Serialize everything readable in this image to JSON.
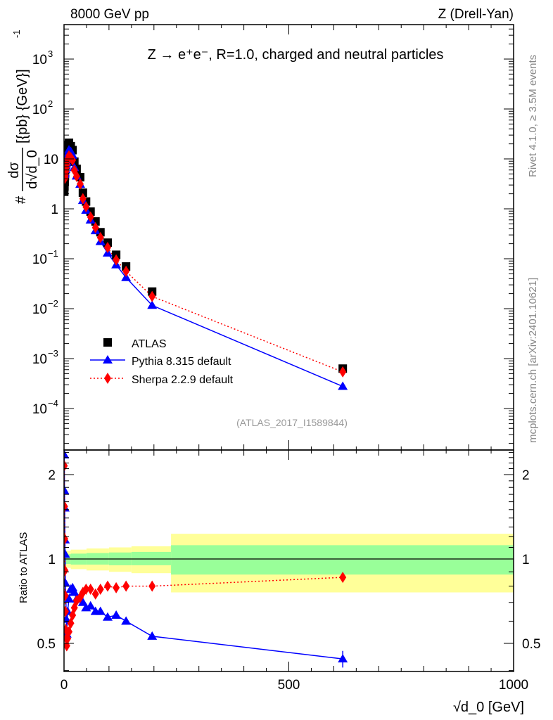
{
  "header": {
    "left": "8000 GeV pp",
    "right": "Z (Drell-Yan)"
  },
  "side_labels": {
    "rivet": "Rivet 4.1.0, ≥ 3.5M events",
    "mcplots": "mcplots.cern.ch [arXiv:2401.10621]"
  },
  "chart_data": [
    {
      "type": "line",
      "panel": "main",
      "title": "Z → e⁺e⁻, R=1.0, charged and neutral particles",
      "annotation": "(ATLAS_2017_I1589844)",
      "ylabel": {
        "prefix": "#",
        "num": "dσ",
        "den": "d√d_0",
        "units": "[{pb} {GeV}]",
        "exp": "-1"
      },
      "yscale": "log",
      "ylim": [
        1.5e-05,
        5000
      ],
      "xlim": [
        0,
        1000
      ],
      "ytick_labels": [
        {
          "v": 1000,
          "base": "10",
          "exp": "3"
        },
        {
          "v": 100,
          "base": "10",
          "exp": "2"
        },
        {
          "v": 10,
          "base": "10",
          "exp": ""
        },
        {
          "v": 1,
          "base": "1",
          "exp": ""
        },
        {
          "v": 0.1,
          "base": "10",
          "exp": "−1"
        },
        {
          "v": 0.01,
          "base": "10",
          "exp": "−2"
        },
        {
          "v": 0.001,
          "base": "10",
          "exp": "−3"
        },
        {
          "v": 0.0001,
          "base": "10",
          "exp": "−4"
        }
      ],
      "legend": {
        "placement": "bottom-left",
        "entries": [
          "ATLAS",
          "Pythia 8.315 default",
          "Sherpa 2.2.9 default"
        ]
      },
      "x": [
        0.5,
        1,
        1.5,
        2,
        2.5,
        3,
        4,
        5,
        6,
        8,
        11,
        15,
        19,
        23,
        28,
        36,
        42,
        49,
        59,
        70,
        81,
        97,
        116,
        138,
        196,
        620
      ],
      "series": [
        {
          "name": "ATLAS",
          "color": "#000000",
          "marker": "square",
          "values": [
            2.2,
            2.8,
            3.5,
            4.5,
            6,
            7.5,
            10,
            13,
            16,
            19,
            21,
            18,
            15,
            8.8,
            6.3,
            4.3,
            2.1,
            1.4,
            0.88,
            0.56,
            0.34,
            0.21,
            0.12,
            0.07,
            0.022,
            0.00063
          ]
        },
        {
          "name": "Pythia 8.315 default",
          "color": "#0000ff",
          "marker": "triangle",
          "derived_from_ratio": true
        },
        {
          "name": "Sherpa 2.2.9 default",
          "color": "#ff0000",
          "marker": "diamond",
          "derived_from_ratio": true
        }
      ]
    },
    {
      "type": "line",
      "panel": "ratio",
      "ylabel": "Ratio to ATLAS",
      "xlabel": "√d_0 [GeV]",
      "yscale": "log",
      "ylim": [
        0.4,
        2.45
      ],
      "xlim": [
        0,
        1000
      ],
      "xtick_labels": [
        "0",
        "500",
        "1000"
      ],
      "xtick_values": [
        0,
        500,
        1000
      ],
      "ytick_labels": [
        "2",
        "1",
        "0.5"
      ],
      "ytick_values": [
        2,
        1,
        0.5
      ],
      "x": [
        0.5,
        1,
        1.5,
        2,
        2.5,
        3,
        4,
        5,
        6,
        8,
        11,
        15,
        19,
        23,
        28,
        36,
        42,
        49,
        59,
        70,
        81,
        97,
        116,
        138,
        196,
        620
      ],
      "series": [
        {
          "name": "Pythia 8.315 default",
          "color": "#0000ff",
          "values": [
            2.35,
            1.75,
            1.52,
            1.17,
            1.04,
            0.82,
            0.74,
            0.61,
            0.54,
            0.65,
            0.72,
            0.78,
            0.79,
            0.76,
            0.72,
            0.72,
            0.7,
            0.67,
            0.68,
            0.65,
            0.65,
            0.62,
            0.63,
            0.6,
            0.53,
            0.44
          ],
          "last_error": 0.03
        },
        {
          "name": "Sherpa 2.2.9 default",
          "color": "#ff0000",
          "values": [
            2.15,
            1.54,
            1.18,
            0.91,
            0.74,
            0.65,
            0.56,
            0.52,
            0.49,
            0.52,
            0.55,
            0.59,
            0.63,
            0.67,
            0.71,
            0.73,
            0.76,
            0.78,
            0.78,
            0.75,
            0.78,
            0.8,
            0.79,
            0.8,
            0.8,
            0.86
          ],
          "last_error": 0.02
        }
      ],
      "bands": {
        "colors": {
          "outer": "#ffff99",
          "inner": "#99ff99"
        },
        "segments": [
          {
            "x": [
              0,
              15
            ],
            "outer": [
              0.93,
              1.07
            ],
            "inner": [
              0.96,
              1.04
            ]
          },
          {
            "x": [
              15,
              50
            ],
            "outer": [
              0.92,
              1.08
            ],
            "inner": [
              0.955,
              1.045
            ]
          },
          {
            "x": [
              50,
              100
            ],
            "outer": [
              0.91,
              1.09
            ],
            "inner": [
              0.955,
              1.05
            ]
          },
          {
            "x": [
              100,
              150
            ],
            "outer": [
              0.9,
              1.1
            ],
            "inner": [
              0.95,
              1.055
            ]
          },
          {
            "x": [
              150,
              238
            ],
            "outer": [
              0.89,
              1.11
            ],
            "inner": [
              0.95,
              1.06
            ]
          },
          {
            "x": [
              238,
              1000
            ],
            "outer": [
              0.76,
              1.23
            ],
            "inner": [
              0.88,
              1.12
            ]
          }
        ]
      }
    }
  ]
}
